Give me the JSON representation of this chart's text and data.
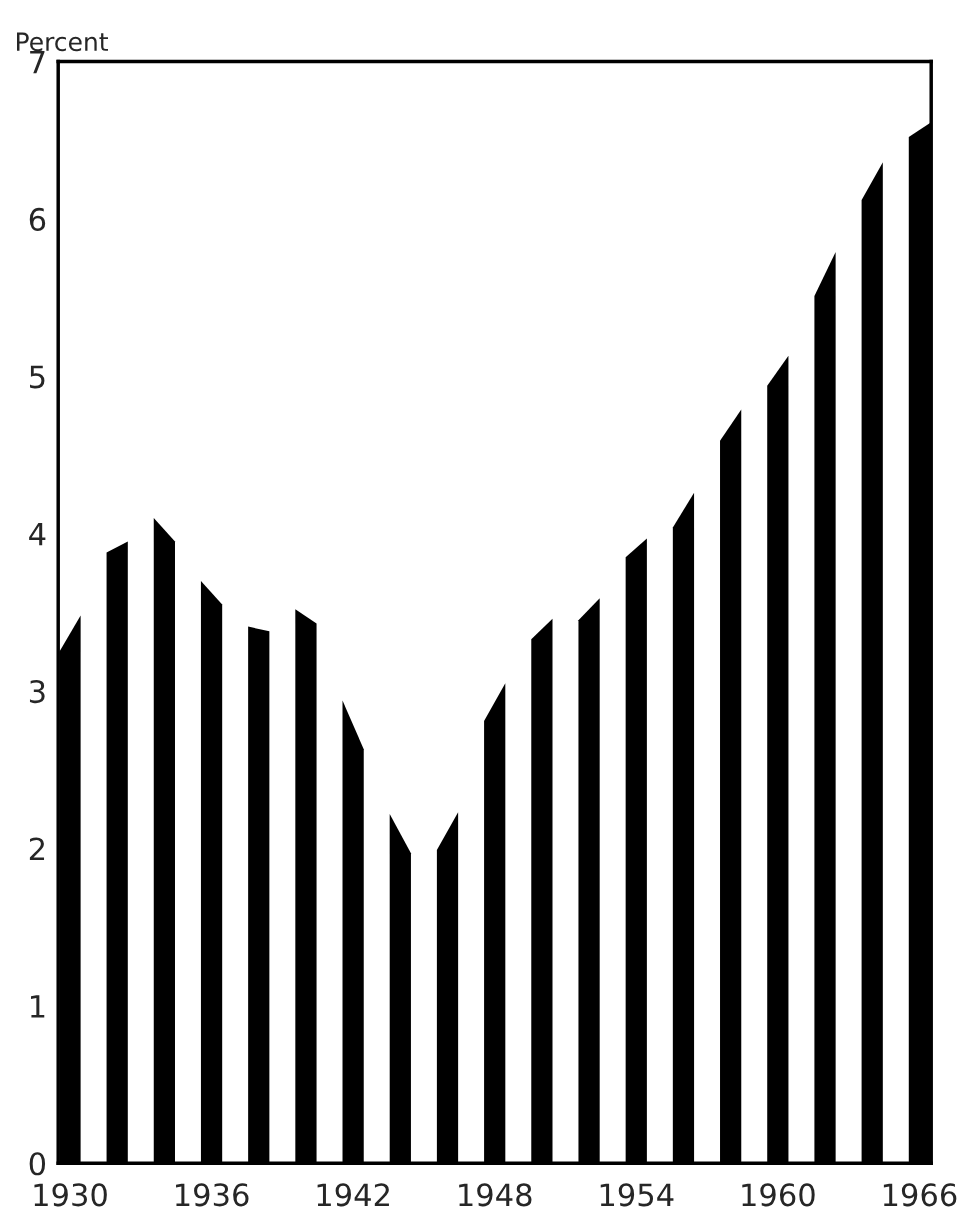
{
  "chart_data": {
    "type": "area",
    "ylabel": "Percent",
    "x": [
      1929.55,
      1930.45,
      1931,
      1931.55,
      1932.45,
      1933,
      1933.55,
      1934.45,
      1935,
      1935.55,
      1936.45,
      1937,
      1937.55,
      1938.45,
      1939,
      1939.55,
      1940.45,
      1941,
      1941.55,
      1942.45,
      1943,
      1943.55,
      1944.45,
      1945,
      1945.55,
      1946.45,
      1947,
      1947.55,
      1948.45,
      1949,
      1949.55,
      1950.45,
      1951,
      1951.55,
      1952.45,
      1953,
      1953.55,
      1954.45,
      1955,
      1955.55,
      1956.45,
      1957,
      1957.55,
      1958.45,
      1959,
      1959.55,
      1960.45,
      1961,
      1961.55,
      1962.45,
      1963,
      1963.55,
      1964.45,
      1965,
      1965.55,
      1966.45
    ],
    "series": [
      {
        "color": "#000000",
        "values": [
          3.25,
          3.48,
          null,
          3.88,
          3.95,
          null,
          4.1,
          3.95,
          null,
          3.7,
          3.55,
          null,
          3.41,
          3.38,
          null,
          3.52,
          3.43,
          null,
          2.94,
          2.63,
          null,
          2.22,
          1.97,
          null,
          1.99,
          2.23,
          null,
          2.81,
          3.05,
          null,
          3.33,
          3.46,
          null,
          3.45,
          3.59,
          null,
          3.85,
          3.97,
          null,
          4.04,
          4.26,
          null,
          4.59,
          4.79,
          null,
          4.94,
          5.13,
          null,
          5.51,
          5.79,
          null,
          6.12,
          6.36,
          null,
          6.52,
          6.61
        ]
      }
    ],
    "xlim": [
      1929.5,
      1966.5
    ],
    "ylim": [
      0,
      7
    ],
    "xticks": [
      1930,
      1936,
      1942,
      1948,
      1954,
      1960,
      1966
    ],
    "yticks": [
      0,
      1,
      2,
      3,
      4,
      5,
      6,
      7
    ],
    "grid": false,
    "legend": false
  }
}
